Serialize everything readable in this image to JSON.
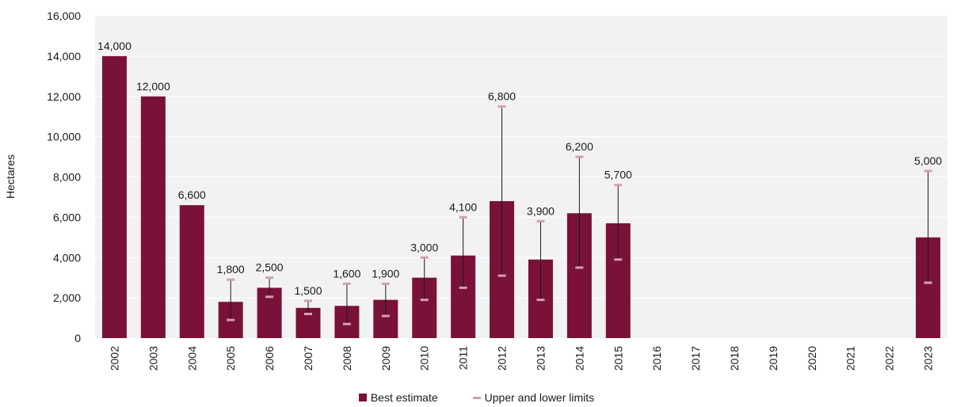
{
  "chart_data": {
    "type": "bar",
    "title": "",
    "xlabel": "",
    "ylabel": "Hectares",
    "ylim": [
      0,
      16000
    ],
    "yticks": [
      0,
      2000,
      4000,
      6000,
      8000,
      10000,
      12000,
      14000,
      16000
    ],
    "ytick_labels": [
      "0",
      "2,000",
      "4,000",
      "6,000",
      "8,000",
      "10,000",
      "12,000",
      "14,000",
      "16,000"
    ],
    "grid": "horizontal",
    "legend_position": "bottom",
    "categories": [
      "2002",
      "2003",
      "2004",
      "2005",
      "2006",
      "2007",
      "2008",
      "2009",
      "2010",
      "2011",
      "2012",
      "2013",
      "2014",
      "2015",
      "2016",
      "2017",
      "2018",
      "2019",
      "2020",
      "2021",
      "2022",
      "2023"
    ],
    "series": [
      {
        "name": "Best estimate",
        "values": [
          14000,
          12000,
          6600,
          1800,
          2500,
          1500,
          1600,
          1900,
          3000,
          4100,
          6800,
          3900,
          6200,
          5700,
          null,
          null,
          null,
          null,
          null,
          null,
          null,
          5000
        ],
        "labels": [
          "14,000",
          "12,000",
          "6,600",
          "1,800",
          "2,500",
          "1,500",
          "1,600",
          "1,900",
          "3,000",
          "4,100",
          "6,800",
          "3,900",
          "6,200",
          "5,700",
          "",
          "",
          "",
          "",
          "",
          "",
          "",
          "5,000"
        ]
      },
      {
        "name": "Upper and lower limits",
        "upper": [
          null,
          null,
          null,
          2900,
          3000,
          1850,
          2700,
          2700,
          4000,
          6000,
          11500,
          5800,
          9000,
          7600,
          null,
          null,
          null,
          null,
          null,
          null,
          null,
          8300
        ],
        "lower": [
          null,
          null,
          null,
          900,
          2050,
          1200,
          700,
          1100,
          1900,
          2500,
          3100,
          1900,
          3500,
          3900,
          null,
          null,
          null,
          null,
          null,
          null,
          null,
          2750
        ]
      }
    ],
    "colors": {
      "bar": "#7a1138",
      "limit": "#d4a0ad",
      "whisker": "#1a1a1a",
      "plot_bg": "#f2f2f2",
      "grid": "#ffffff"
    }
  }
}
